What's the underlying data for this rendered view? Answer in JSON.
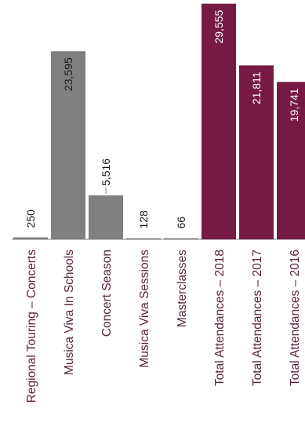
{
  "chart_data": {
    "type": "bar",
    "categories": [
      "Regional Touring – Concerts",
      "Musica Viva In Schools",
      "Concert Season",
      "Musica Viva Sessions",
      "Masterclasses",
      "Total Attendances – 2018",
      "Total Attendances – 2017",
      "Total Attendances – 2016"
    ],
    "values": [
      250,
      23595,
      5516,
      128,
      66,
      29555,
      21811,
      19741
    ],
    "value_labels": [
      "250",
      "23,595",
      "5,516",
      "128",
      "66",
      "29,555",
      "21,811",
      "19,741"
    ],
    "ylim": [
      0,
      31000
    ],
    "grid": false,
    "legend": "none",
    "colors": [
      "#808080",
      "#808080",
      "#808080",
      "#808080",
      "#808080",
      "#761a43",
      "#761a43",
      "#761a43"
    ]
  }
}
